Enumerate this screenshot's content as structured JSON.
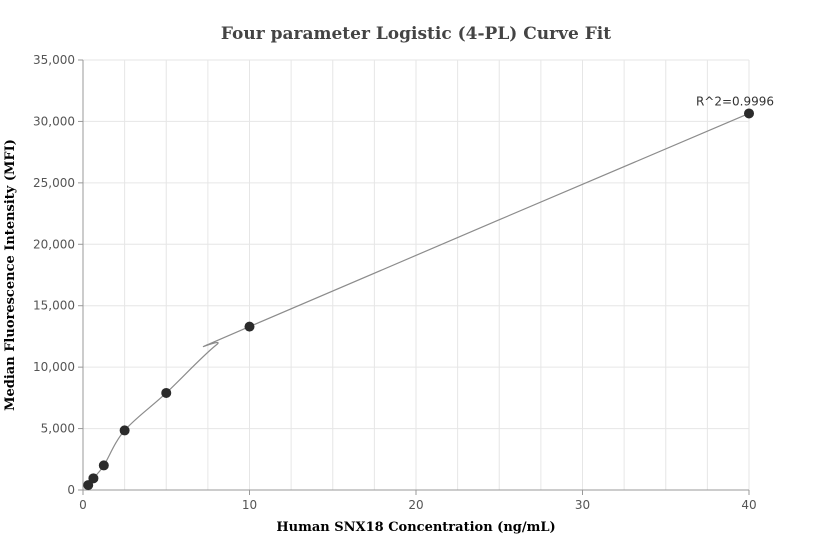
{
  "chart_data": {
    "type": "scatter",
    "title": "Four parameter Logistic (4-PL) Curve Fit",
    "xlabel": "Human SNX18 Concentration (ng/mL)",
    "ylabel": "Median Fluorescence Intensity (MFI)",
    "xlim": [
      0,
      40
    ],
    "ylim": [
      0,
      35000
    ],
    "x_ticks": [
      0,
      10,
      20,
      30,
      40
    ],
    "x_tick_labels": [
      "0",
      "10",
      "20",
      "30",
      "40"
    ],
    "y_ticks": [
      0,
      5000,
      10000,
      15000,
      20000,
      25000,
      30000,
      35000
    ],
    "y_tick_labels": [
      "0",
      "5,000",
      "10,000",
      "15,000",
      "20,000",
      "25,000",
      "30,000",
      "35,000"
    ],
    "grid": true,
    "series": [
      {
        "points": [
          {
            "x": 0.3125,
            "y": 400
          },
          {
            "x": 0.625,
            "y": 950
          },
          {
            "x": 1.25,
            "y": 2000
          },
          {
            "x": 2.5,
            "y": 4850
          },
          {
            "x": 5,
            "y": 7900
          },
          {
            "x": 10,
            "y": 13300
          },
          {
            "x": 40,
            "y": 30650
          }
        ],
        "color": "#2b2b2b"
      }
    ],
    "fit_curve": {
      "points": [
        {
          "x": 0.3125,
          "y": 400
        },
        {
          "x": 0.625,
          "y": 950
        },
        {
          "x": 1.25,
          "y": 2000
        },
        {
          "x": 2.5,
          "y": 4850
        },
        {
          "x": 5,
          "y": 7900
        },
        {
          "x": 8,
          "y": 11800
        },
        {
          "x": 10,
          "y": 13300
        },
        {
          "x": 40,
          "y": 30650
        }
      ],
      "color": "#8c8c8c"
    },
    "annotation": {
      "text": "R^2=0.9996",
      "x": 40,
      "y": 30650
    }
  }
}
